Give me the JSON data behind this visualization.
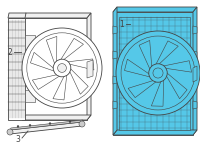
{
  "background_color": "#ffffff",
  "fig_width": 2.0,
  "fig_height": 1.47,
  "dpi": 100,
  "part1_label": "1",
  "part2_label": "2",
  "part3_label": "3",
  "highlight_color": "#55c8e8",
  "line_color": "#444444",
  "white_color": "#ffffff",
  "light_gray": "#f0f0f0",
  "mid_gray": "#cccccc"
}
